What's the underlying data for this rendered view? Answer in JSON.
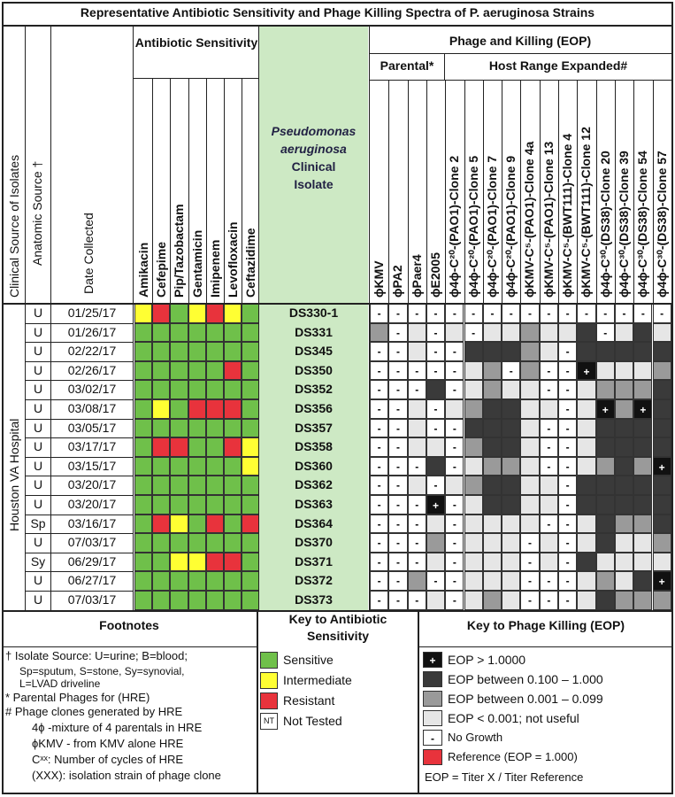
{
  "title": "Representative Antibiotic Sensitivity and Phage Killing Spectra of P. aeruginosa Strains",
  "headers": {
    "clinical_source": "Clinical Source of Isolates",
    "anatomic_source": "Anatomic Source †",
    "date_collected": "Date Collected",
    "antibiotic_sensitivity": "Antibiotic Sensitivity",
    "isolate_title": [
      "Pseudomonas",
      "aeruginosa",
      "Clinical",
      "Isolate"
    ],
    "phage_and_killing": "Phage and Killing (EOP)",
    "parental": "Parental*",
    "host_range_expanded": "Host Range Expanded#"
  },
  "antibiotics": [
    "Amikacin",
    "Cefepime",
    "Pip/Tazobactam",
    "Gentamicin",
    "Imipenem",
    "Levofloxacin",
    "Ceftazidime"
  ],
  "phages": [
    "ϕKMV",
    "ϕPA2",
    "ϕPaer4",
    "ϕE2005",
    "ϕ4ϕ-C²⁰-(PAO1)-Clone 2",
    "ϕ4ϕ-C²⁰-(PAO1)-Clone 5",
    "ϕ4ϕ-C²⁰-(PAO1)-Clone 7",
    "ϕ4ϕ-C²⁰-(PAO1)-Clone 9",
    "ϕKMV-C⁵-(PAO1)-Clone 4a",
    "ϕKMV-C⁵-(PAO1)-Clone 13",
    "ϕKMV-C⁵-(BWT111)-Clone 4",
    "ϕKMV-C⁵-(BWT111)-Clone 12",
    "ϕ4ϕ-C³⁰-(DS38)-Clone 20",
    "ϕ4ϕ-C³⁰-(DS38)-Clone 39",
    "ϕ4ϕ-C³⁰-(DS38)-Clone 54",
    "ϕ4ϕ-C³⁰-(DS38)-Clone 57"
  ],
  "clinical_source_value": "Houston VA Hospital",
  "rows": [
    {
      "source": "U",
      "date": "01/25/17",
      "isolate": "DS330-1",
      "abx": "YRGYRYG",
      "phage": "NNNNNNNNNNNNNNNN"
    },
    {
      "source": "U",
      "date": "01/26/17",
      "isolate": "DS331",
      "abx": "GGGGGGG",
      "phage": "MNLNLNLLMLLBNLBL"
    },
    {
      "source": "U",
      "date": "02/22/17",
      "isolate": "DS345",
      "abx": "GGGGGGG",
      "phage": "NNLNNBBBMLNBBBBB"
    },
    {
      "source": "U",
      "date": "02/26/17",
      "isolate": "DS350",
      "abx": "GGGGGRG",
      "phage": "NNNNNLMNMNNPLLLM"
    },
    {
      "source": "U",
      "date": "03/02/17",
      "isolate": "DS352",
      "abx": "GGGGGGG",
      "phage": "NNNBNLMLLNNLMMMB"
    },
    {
      "source": "U",
      "date": "03/08/17",
      "isolate": "DS356",
      "abx": "GYGRRRG",
      "phage": "NNLNLMBBLLNLPMPB"
    },
    {
      "source": "U",
      "date": "03/05/17",
      "isolate": "DS357",
      "abx": "GGGGGGG",
      "phage": "NNLNNBBBLNNLBBBB"
    },
    {
      "source": "U",
      "date": "03/17/17",
      "isolate": "DS358",
      "abx": "GRRGGRY",
      "phage": "NNLLNMBBLNNLBBBB"
    },
    {
      "source": "U",
      "date": "03/15/17",
      "isolate": "DS360",
      "abx": "GGGGGGY",
      "phage": "NNNBNLMMLNNLMBMP"
    },
    {
      "source": "U",
      "date": "03/20/17",
      "isolate": "DS362",
      "abx": "GGGGGGG",
      "phage": "NNLNLMBBLLNBBBBB"
    },
    {
      "source": "U",
      "date": "03/20/17",
      "isolate": "DS363",
      "abx": "GGGGGGG",
      "phage": "NNNPNLBBLLNBBBBB"
    },
    {
      "source": "Sp",
      "date": "03/16/17",
      "isolate": "DS364",
      "abx": "GRYGRGR",
      "phage": "NNNLNLLLLNNLBMMB"
    },
    {
      "source": "U",
      "date": "07/03/17",
      "isolate": "DS370",
      "abx": "GGGGGGG",
      "phage": "NNNMNLLLNLNLBLLM"
    },
    {
      "source": "Sy",
      "date": "06/29/17",
      "isolate": "DS371",
      "abx": "GGYYRRG",
      "phage": "NNNLNLLLNLNBLLLL"
    },
    {
      "source": "U",
      "date": "06/27/17",
      "isolate": "DS372",
      "abx": "GGGGGGG",
      "phage": "NNMNNLLLNNNLMLBP"
    },
    {
      "source": "U",
      "date": "07/03/17",
      "isolate": "DS373",
      "abx": "GGGGGGG",
      "phage": "NNNLNLMLNNNLBMMM"
    }
  ],
  "footnotes": {
    "title": "Footnotes",
    "lines": [
      "† Isolate Source: U=urine; B=blood;",
      "Sp=sputum, S=stone, Sy=synovial,",
      "L=LVAD driveline",
      "* Parental Phages for (HRE)",
      "# Phage clones generated by HRE",
      "4ϕ -mixture of 4 parentals in HRE",
      "ϕKMV -  from KMV alone HRE",
      "Cˣˣ: Number of cycles of HRE",
      "(XXX): isolation strain of phage clone"
    ]
  },
  "antibiotic_key": {
    "title": "Key to Antibiotic Sensitivity",
    "items": [
      {
        "label": "Sensitive",
        "color": "#6fc04a",
        "mark": ""
      },
      {
        "label": "Intermediate",
        "color": "#ffff33",
        "mark": ""
      },
      {
        "label": "Resistant",
        "color": "#e8333c",
        "mark": ""
      },
      {
        "label": "Not Tested",
        "color": "#ffffff",
        "mark": "NT"
      }
    ]
  },
  "phage_key": {
    "title": "Key to Phage Killing (EOP)",
    "items": [
      {
        "label": "EOP > 1.0000",
        "color": "#111111",
        "mark": "+"
      },
      {
        "label": "EOP between 0.100 – 1.000",
        "color": "#3a3a3a",
        "mark": ""
      },
      {
        "label": "EOP between 0.001 – 0.099",
        "color": "#9a9a9a",
        "mark": ""
      },
      {
        "label": "EOP < 0.001; not useful",
        "color": "#e6e6e6",
        "mark": ""
      },
      {
        "label": "No Growth",
        "color": "#ffffff",
        "mark": "-"
      },
      {
        "label": "Reference (EOP = 1.000)",
        "color": "#e8333c",
        "mark": ""
      }
    ],
    "formula": "EOP = Titer X / Titer Reference"
  },
  "colors": {
    "sensitive": "#6fc04a",
    "intermediate": "#ffff33",
    "resistant": "#e8333c",
    "isolate_bg": "#cde9c4",
    "eop_plus": "#111111",
    "eop_high": "#3a3a3a",
    "eop_mid": "#9a9a9a",
    "eop_low": "#e6e6e6",
    "no_growth": "#ffffff"
  }
}
